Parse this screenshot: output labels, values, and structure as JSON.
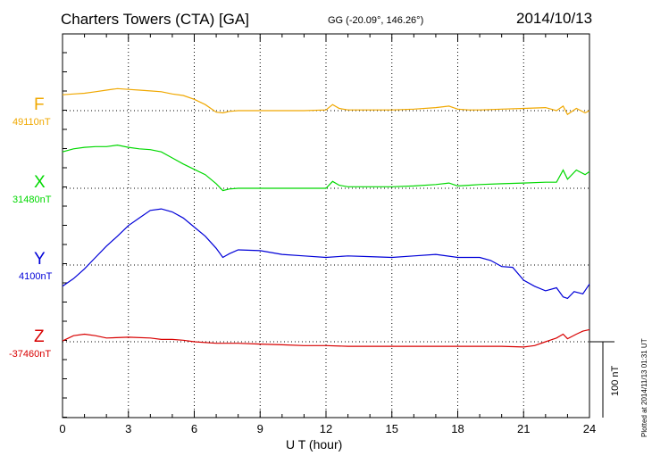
{
  "header": {
    "title": "Charters Towers (CTA)  [GA]",
    "coords": "GG (-20.09°, 146.26°)",
    "date": "2014/10/13"
  },
  "footer": {
    "plotted": "Plotted at 2014/11/13 01:31  UT"
  },
  "chart_data": {
    "type": "line",
    "xlabel": "U T (hour)",
    "xlim": [
      0,
      24
    ],
    "x_ticks": [
      "0",
      "3",
      "6",
      "9",
      "12",
      "15",
      "18",
      "21",
      "24"
    ],
    "scale_bar": "100 nT",
    "grid": true,
    "series": [
      {
        "name": "F",
        "baseline": "49110nT",
        "color": "#f0a800",
        "x": [
          0,
          0.5,
          1,
          1.5,
          2,
          2.5,
          3,
          3.5,
          4,
          4.5,
          5,
          5.5,
          6,
          6.5,
          7,
          7.3,
          7.6,
          8,
          9,
          10,
          11,
          12,
          12.3,
          12.6,
          13,
          14,
          15,
          16,
          17,
          17.6,
          18,
          18.5,
          19,
          20,
          21,
          22,
          22.5,
          22.8,
          23,
          23.4,
          23.8,
          24
        ],
        "y": [
          21,
          22,
          23,
          25,
          27,
          29,
          28,
          27,
          26,
          25,
          22,
          20,
          15,
          8,
          -2,
          -3,
          -1,
          0,
          0,
          0,
          0,
          1,
          8,
          3,
          1,
          1,
          1,
          2,
          4,
          6,
          2,
          1,
          1,
          2,
          3,
          4,
          0,
          6,
          -5,
          3,
          -3,
          0
        ]
      },
      {
        "name": "X",
        "baseline": "31480nT",
        "color": "#00d800",
        "x": [
          0,
          0.5,
          1,
          1.5,
          2,
          2.5,
          3,
          3.5,
          4,
          4.5,
          5,
          5.5,
          6,
          6.5,
          7,
          7.3,
          7.6,
          8,
          9,
          10,
          11,
          12,
          12.3,
          12.6,
          13,
          14,
          15,
          16,
          17,
          17.6,
          18,
          18.5,
          19,
          20,
          21,
          22,
          22.5,
          22.8,
          23,
          23.4,
          23.8,
          24
        ],
        "y": [
          48,
          52,
          54,
          55,
          55,
          57,
          54,
          52,
          51,
          48,
          40,
          32,
          25,
          18,
          6,
          -3,
          -1,
          0,
          0,
          0,
          0,
          0,
          9,
          4,
          2,
          2,
          2,
          3,
          5,
          7,
          3,
          4,
          5,
          6,
          7,
          8,
          8,
          24,
          12,
          24,
          18,
          22
        ]
      },
      {
        "name": "Y",
        "baseline": "4100nT",
        "color": "#0000d8",
        "x": [
          0,
          0.5,
          1,
          1.5,
          2,
          2.5,
          3,
          3.5,
          4,
          4.5,
          5,
          5.5,
          6,
          6.5,
          7,
          7.3,
          7.6,
          8,
          9,
          10,
          11,
          12,
          13,
          14,
          15,
          16,
          17,
          18,
          19,
          19.5,
          20,
          20.5,
          21,
          21.5,
          22,
          22.5,
          22.8,
          23,
          23.3,
          23.7,
          24
        ],
        "y": [
          -28,
          -18,
          -5,
          10,
          25,
          38,
          52,
          62,
          72,
          74,
          70,
          62,
          50,
          38,
          22,
          10,
          15,
          20,
          19,
          14,
          12,
          10,
          12,
          11,
          10,
          12,
          14,
          10,
          10,
          6,
          -2,
          -3,
          -20,
          -28,
          -34,
          -30,
          -42,
          -44,
          -35,
          -38,
          -25
        ]
      },
      {
        "name": "Z",
        "baseline": "-37460nT",
        "color": "#d80000",
        "x": [
          0,
          0.5,
          1,
          1.5,
          2,
          3,
          4,
          4.5,
          5,
          5.5,
          6,
          7,
          8,
          9,
          10,
          11,
          12,
          13,
          14,
          15,
          16,
          17,
          18,
          19,
          20,
          21,
          21.5,
          22,
          22.5,
          22.8,
          23,
          23.4,
          23.7,
          24
        ],
        "y": [
          1,
          8,
          10,
          8,
          5,
          6,
          5,
          3,
          3,
          2,
          0,
          -2,
          -2,
          -3,
          -4,
          -5,
          -5,
          -6,
          -6,
          -6,
          -6,
          -6,
          -6,
          -6,
          -6,
          -7,
          -5,
          0,
          5,
          10,
          4,
          10,
          14,
          16
        ]
      }
    ]
  }
}
